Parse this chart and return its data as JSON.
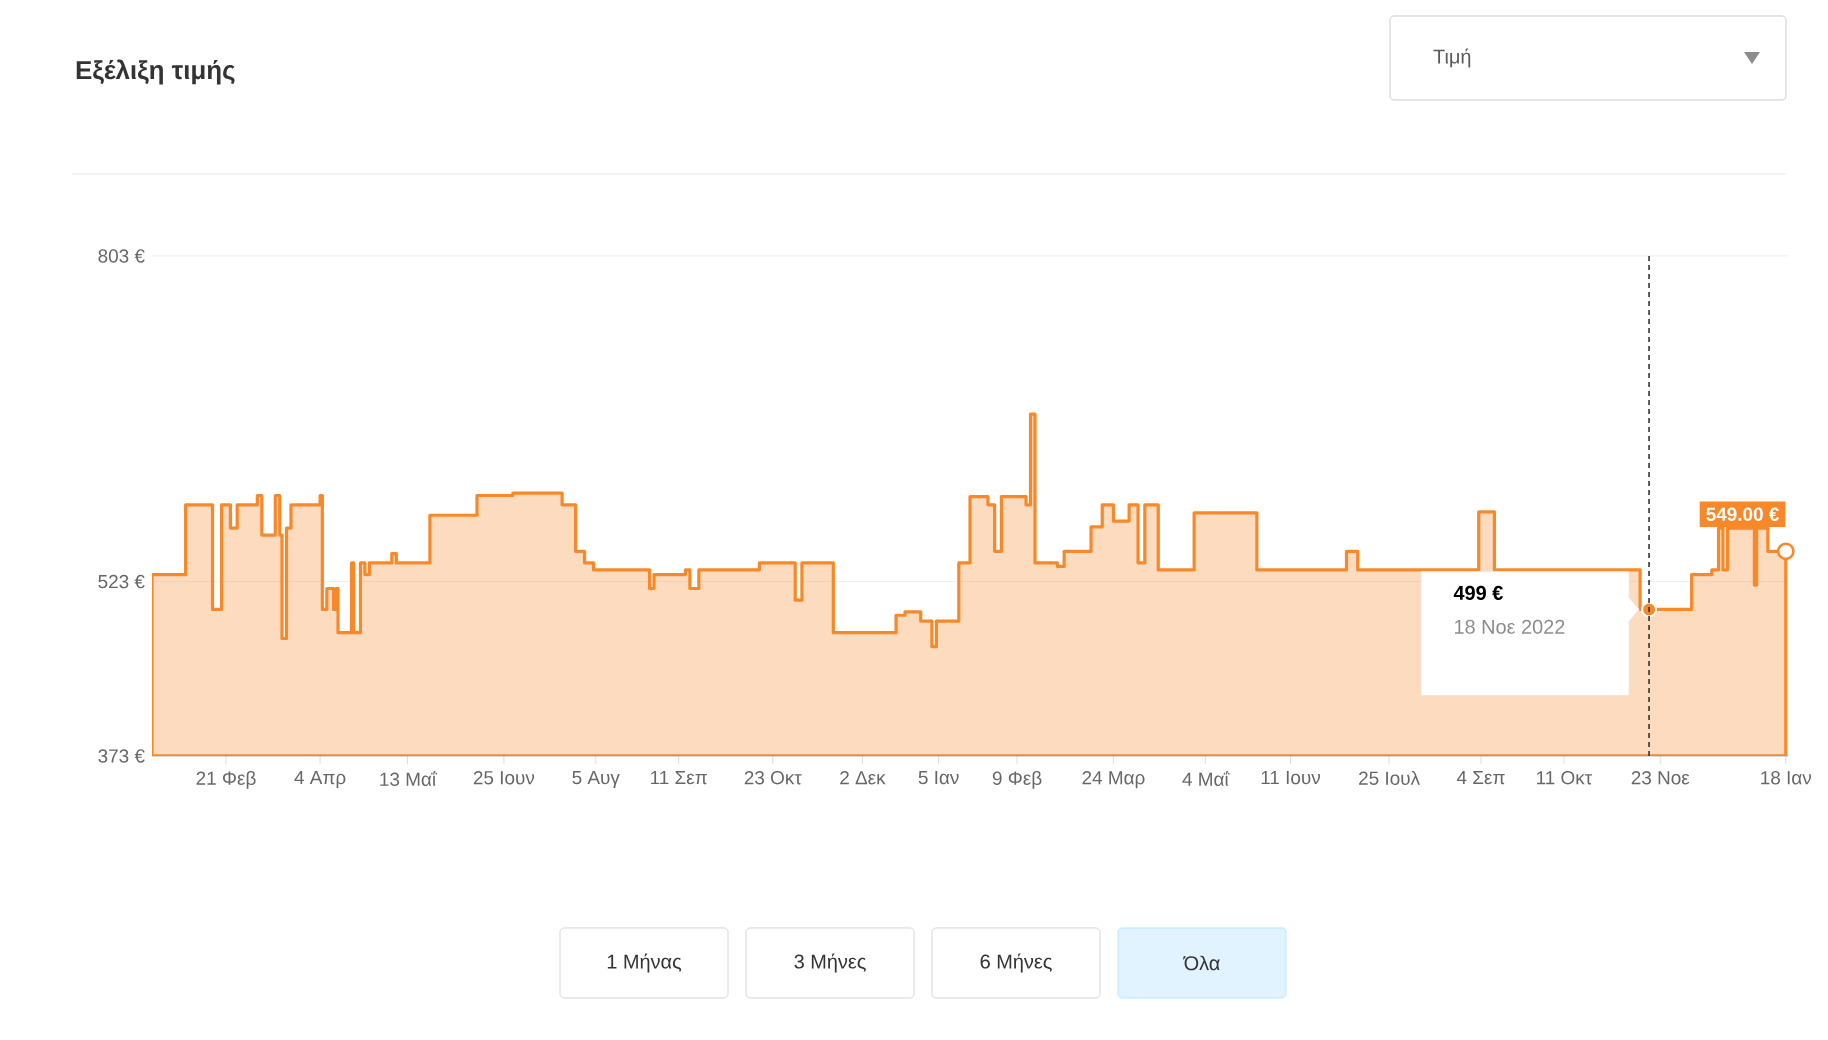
{
  "chart_data": {
    "type": "area",
    "title": "Εξέλιξη τιμής",
    "grid": "y",
    "xlim": [
      "2021-01-19",
      "2023-01-19"
    ],
    "ylim": [
      373,
      803
    ],
    "yticks": [
      {
        "value": 373,
        "label": "373 €"
      },
      {
        "value": 523,
        "label": "523 €"
      },
      {
        "value": 803,
        "label": "803 €"
      }
    ],
    "xticks": [
      {
        "value": "2021-02-21",
        "label": "21 Φεβ"
      },
      {
        "value": "2021-04-04",
        "label": "4 Απρ"
      },
      {
        "value": "2021-05-13",
        "label": "13 Μαΐ"
      },
      {
        "value": "2021-06-25",
        "label": "25 Ιουν"
      },
      {
        "value": "2021-08-05",
        "label": "5 Αυγ"
      },
      {
        "value": "2021-09-11",
        "label": "11 Σεπ"
      },
      {
        "value": "2021-10-23",
        "label": "23 Οκτ"
      },
      {
        "value": "2021-12-02",
        "label": "2 Δεκ"
      },
      {
        "value": "2022-01-05",
        "label": "5 Ιαν"
      },
      {
        "value": "2022-02-09",
        "label": "9 Φεβ"
      },
      {
        "value": "2022-03-24",
        "label": "24 Μαρ"
      },
      {
        "value": "2022-05-04",
        "label": "4 Μαΐ"
      },
      {
        "value": "2022-06-11",
        "label": "11 Ιουν"
      },
      {
        "value": "2022-07-25",
        "label": "25 Ιουλ"
      },
      {
        "value": "2022-09-04",
        "label": "4 Σεπ"
      },
      {
        "value": "2022-10-11",
        "label": "11 Οκτ"
      },
      {
        "value": "2022-11-23",
        "label": "23 Νοε"
      },
      {
        "value": "2023-01-18",
        "label": "18 Ιαν"
      }
    ],
    "series": [
      {
        "color": "#f7892a",
        "x": [
          "2021-01-19",
          "2021-02-03",
          "2021-02-15",
          "2021-02-19",
          "2021-02-23",
          "2021-02-26",
          "2021-03-07",
          "2021-03-09",
          "2021-03-15",
          "2021-03-17",
          "2021-03-18",
          "2021-03-20",
          "2021-03-22",
          "2021-04-04",
          "2021-04-05",
          "2021-04-07",
          "2021-04-10",
          "2021-04-11",
          "2021-04-12",
          "2021-04-18",
          "2021-04-19",
          "2021-04-22",
          "2021-04-24",
          "2021-04-26",
          "2021-05-06",
          "2021-05-08",
          "2021-05-23",
          "2021-06-13",
          "2021-06-29",
          "2021-07-21",
          "2021-07-27",
          "2021-07-31",
          "2021-08-04",
          "2021-08-29",
          "2021-08-31",
          "2021-09-14",
          "2021-09-16",
          "2021-09-20",
          "2021-10-17",
          "2021-11-02",
          "2021-11-05",
          "2021-11-19",
          "2021-12-17",
          "2021-12-21",
          "2021-12-28",
          "2022-01-02",
          "2022-01-04",
          "2022-01-14",
          "2022-01-19",
          "2022-01-27",
          "2022-01-30",
          "2022-02-02",
          "2022-02-13",
          "2022-02-15",
          "2022-02-17",
          "2022-02-27",
          "2022-03-02",
          "2022-03-14",
          "2022-03-19",
          "2022-03-24",
          "2022-03-31",
          "2022-04-04",
          "2022-04-07",
          "2022-04-13",
          "2022-04-29",
          "2022-05-27",
          "2022-07-06",
          "2022-07-11",
          "2022-09-03",
          "2022-09-10",
          "2022-11-14",
          "2022-12-07",
          "2022-12-16",
          "2022-12-19",
          "2022-12-21",
          "2022-12-23",
          "2023-01-04",
          "2023-01-05",
          "2023-01-10",
          "2023-01-18"
        ],
        "values": [
          529,
          589,
          499,
          589,
          569,
          589,
          597,
          563,
          597,
          563,
          474,
          569,
          589,
          597,
          499,
          517,
          499,
          517,
          479,
          539,
          479,
          539,
          529,
          539,
          547,
          539,
          580,
          597,
          599,
          589,
          549,
          539,
          533,
          517,
          529,
          533,
          517,
          533,
          539,
          507,
          539,
          479,
          494,
          497,
          489,
          467,
          489,
          539,
          596,
          589,
          549,
          596,
          589,
          667,
          539,
          536,
          549,
          570,
          589,
          575,
          589,
          539,
          589,
          533,
          582,
          533,
          549,
          533,
          583,
          533,
          499,
          529,
          533,
          569,
          533,
          569,
          520,
          569,
          549,
          549
        ]
      },
      {
        "type": "scatter",
        "color": "#f7892a",
        "x": [
          "2022-11-18"
        ],
        "values": [
          499
        ]
      }
    ],
    "ref_lines": [
      {
        "axis": "x",
        "value": "2022-11-18",
        "color": "#333333",
        "line_style": "dashed"
      }
    ],
    "annotations": [
      "Τιμή",
      "1 Μήνας",
      "3 Μήνες",
      "6 Μήνες",
      "Όλα",
      "499 €",
      "18 Νοε 2022",
      {
        "text": "549.00 €",
        "x": "2023-01-18",
        "y": 549
      }
    ]
  }
}
